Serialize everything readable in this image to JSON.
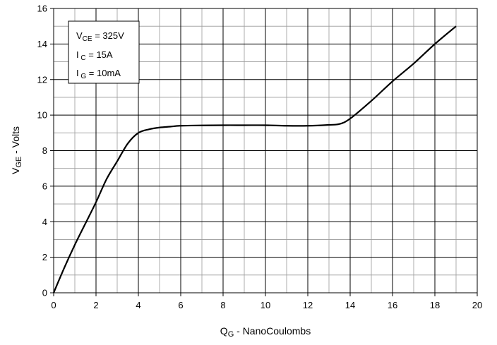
{
  "chart_data": {
    "type": "line",
    "title": "",
    "xlabel": {
      "main": "Q",
      "sub": "G",
      "rest": " - NanoCoulombs"
    },
    "ylabel": {
      "main": "V",
      "sub": "GE",
      "rest": " - Volts"
    },
    "xlim": [
      0,
      20
    ],
    "ylim": [
      0,
      16
    ],
    "x_ticks": [
      0,
      2,
      4,
      6,
      8,
      10,
      12,
      14,
      16,
      18,
      20
    ],
    "y_ticks": [
      0,
      2,
      4,
      6,
      8,
      10,
      12,
      14,
      16
    ],
    "x_tick_labels": [
      "0",
      "2",
      "4",
      "6",
      "8",
      "10",
      "12",
      "14",
      "16",
      "18",
      "20"
    ],
    "y_tick_labels": [
      "0",
      "2",
      "4",
      "6",
      "8",
      "10",
      "12",
      "14",
      "16"
    ],
    "grid": {
      "major": true,
      "minor": true,
      "minor_x_step": 1,
      "minor_y_step": 1
    },
    "legend_placement": "top-left",
    "conditions": [
      {
        "main": "V",
        "sub": "CE",
        "rest": " = 325V"
      },
      {
        "main": "I",
        "sub": " C",
        "rest": " = 15A"
      },
      {
        "main": "I",
        "sub": " G",
        "rest": " = 10mA"
      }
    ],
    "series": [
      {
        "color": "#000000",
        "x": [
          0,
          0.5,
          1,
          1.5,
          2,
          2.5,
          3,
          3.5,
          4,
          4.5,
          5,
          5.5,
          6,
          7,
          8,
          9,
          10,
          11,
          12,
          13,
          13.5,
          14,
          15,
          16,
          17,
          18,
          19
        ],
        "y": [
          0,
          1.4,
          2.7,
          3.9,
          5.1,
          6.4,
          7.4,
          8.4,
          9.0,
          9.2,
          9.3,
          9.35,
          9.4,
          9.42,
          9.43,
          9.43,
          9.43,
          9.4,
          9.4,
          9.45,
          9.5,
          9.8,
          10.8,
          11.9,
          12.9,
          14.0,
          15.0
        ]
      }
    ]
  }
}
